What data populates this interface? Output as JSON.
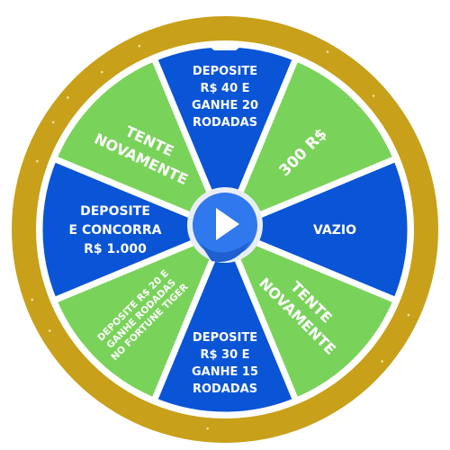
{
  "wheel": {
    "colors": {
      "rim": "#c8a019",
      "rim_dark": "#a8820f",
      "divider": "#ffffff",
      "blue": "#0a54d6",
      "green": "#79d35a",
      "center": "#2f78ee",
      "play": "#ffffff"
    },
    "segments": [
      {
        "color": "blue",
        "lines": [
          "DEPOSITE",
          "R$ 40 E",
          "GANHE 20",
          "RODADAS"
        ]
      },
      {
        "color": "green",
        "lines": [
          "300 R$"
        ]
      },
      {
        "color": "blue",
        "lines": [
          "VAZIO"
        ]
      },
      {
        "color": "green",
        "lines": [
          "TENTE",
          "NOVAMENTE"
        ]
      },
      {
        "color": "blue",
        "lines": [
          "DEPOSITE",
          "R$ 30 E",
          "GANHE 15",
          "RODADAS"
        ]
      },
      {
        "color": "green",
        "lines": [
          "DEPOSITE R$ 20 E",
          "GANHE RODADAS",
          "NO FORTUNE TIGER"
        ]
      },
      {
        "color": "blue",
        "lines": [
          "DEPOSITE",
          "E CONCORRA",
          "R$ 1.000"
        ]
      },
      {
        "color": "green",
        "lines": [
          "TENTE",
          "NOVAMENTE"
        ]
      }
    ],
    "play_icon": "play-icon",
    "pointer_icon": "pointer-notch-icon"
  }
}
